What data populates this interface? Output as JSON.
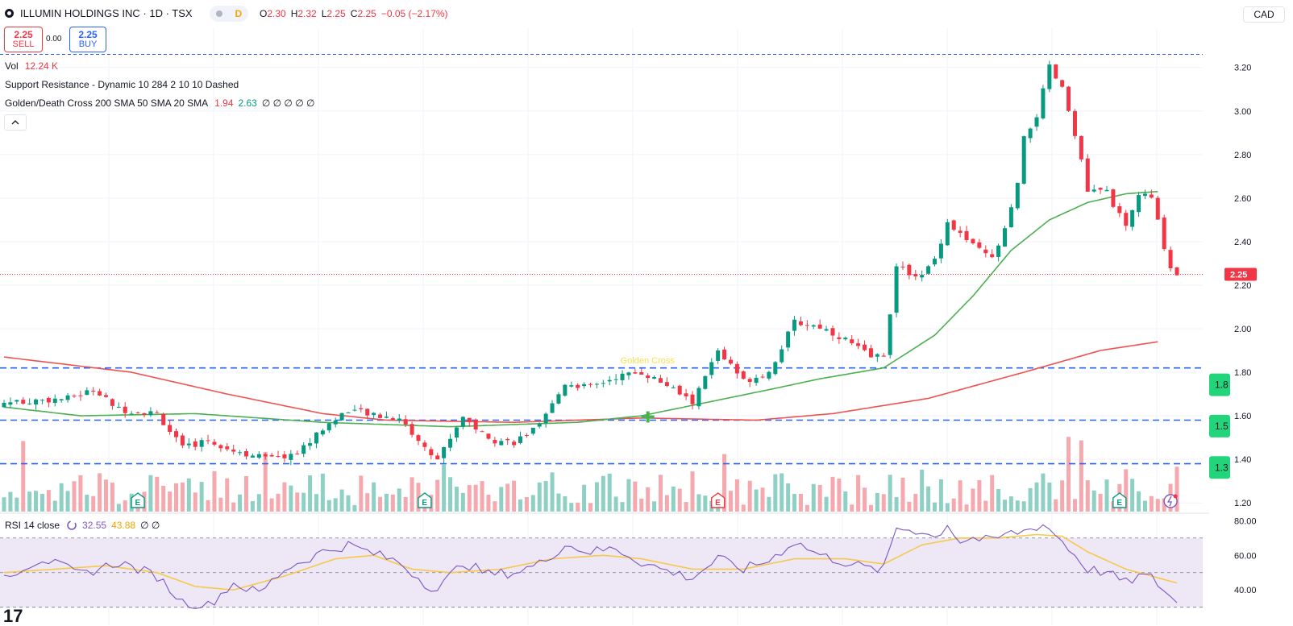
{
  "header": {
    "title": "ILLUMIN HOLDINGS INC · 1D · TSX",
    "toggle_label": "D",
    "ohlc": {
      "o_label": "O",
      "o": "2.30",
      "h_label": "H",
      "h": "2.32",
      "l_label": "L",
      "l": "2.25",
      "c_label": "C",
      "c": "2.25",
      "change": "−0.05 (−2.17%)"
    },
    "currency": "CAD"
  },
  "trade": {
    "sell_price": "2.25",
    "sell_label": "SELL",
    "spread": "0.00",
    "buy_price": "2.25",
    "buy_label": "BUY"
  },
  "legends": {
    "vol_label": "Vol",
    "vol_value": "12.24 K",
    "sr_label": "Support Resistance - Dynamic 10 284 2 10 10 Dashed",
    "gdc_label": "Golden/Death Cross 200 SMA 50 SMA 20 SMA",
    "gdc_v1": "1.94",
    "gdc_v2": "2.63",
    "gdc_rest": "∅ ∅ ∅ ∅ ∅",
    "collapse_icon": "chevron-up-icon"
  },
  "rsi_legend": {
    "label": "RSI 14 close",
    "v1": "32.55",
    "v2": "43.88",
    "rest": "∅ ∅"
  },
  "colors": {
    "up": "#089981",
    "down": "#f23645",
    "sma50": "#4caf50",
    "sma200": "#ef5350",
    "sr": "#2962ff",
    "rsi": "#7e57c2",
    "rsi_ma": "#f7c94a",
    "rsi_band": "#ede7f6",
    "pos_tag": "#22d47a"
  },
  "chart_data": {
    "type": "candlestick",
    "symbol": "ILLUMIN HOLDINGS INC",
    "interval": "1D",
    "y_ticks": [
      "3.20",
      "3.00",
      "2.80",
      "2.60",
      "2.40",
      "2.20",
      "2.00",
      "1.80",
      "1.60",
      "1.40",
      "1.20"
    ],
    "y_range": [
      1.16,
      3.31
    ],
    "last_price": "2.25",
    "support_resistance": [
      3.26,
      1.82,
      1.58,
      1.38
    ],
    "right_tags": [
      "1.8",
      "1.5",
      "1.3"
    ],
    "annotations": {
      "golden_cross": "Golden Cross"
    },
    "event_markers": [
      {
        "index": 21,
        "label": "E",
        "type": "earnings"
      },
      {
        "index": 66,
        "label": "E",
        "type": "earnings"
      },
      {
        "index": 112,
        "label": "E",
        "type": "earnings-negative"
      },
      {
        "index": 175,
        "label": "E",
        "type": "earnings"
      }
    ],
    "sma50_anchors": [
      [
        0,
        1.64
      ],
      [
        12,
        1.6
      ],
      [
        30,
        1.61
      ],
      [
        50,
        1.57
      ],
      [
        70,
        1.55
      ],
      [
        90,
        1.57
      ],
      [
        100,
        1.6
      ],
      [
        110,
        1.66
      ],
      [
        120,
        1.72
      ],
      [
        128,
        1.77
      ],
      [
        138,
        1.82
      ],
      [
        146,
        1.97
      ],
      [
        152,
        2.15
      ],
      [
        158,
        2.36
      ],
      [
        164,
        2.5
      ],
      [
        170,
        2.58
      ],
      [
        176,
        2.62
      ],
      [
        181,
        2.63
      ]
    ],
    "sma200_anchors": [
      [
        0,
        1.87
      ],
      [
        20,
        1.8
      ],
      [
        35,
        1.7
      ],
      [
        50,
        1.61
      ],
      [
        60,
        1.58
      ],
      [
        80,
        1.57
      ],
      [
        100,
        1.59
      ],
      [
        118,
        1.58
      ],
      [
        130,
        1.61
      ],
      [
        145,
        1.68
      ],
      [
        160,
        1.8
      ],
      [
        172,
        1.9
      ],
      [
        181,
        1.94
      ]
    ],
    "close_anchors": [
      [
        0,
        1.66
      ],
      [
        10,
        1.68
      ],
      [
        14,
        1.72
      ],
      [
        18,
        1.63
      ],
      [
        24,
        1.61
      ],
      [
        28,
        1.45
      ],
      [
        32,
        1.49
      ],
      [
        36,
        1.44
      ],
      [
        42,
        1.4
      ],
      [
        46,
        1.43
      ],
      [
        50,
        1.54
      ],
      [
        54,
        1.63
      ],
      [
        58,
        1.6
      ],
      [
        62,
        1.59
      ],
      [
        66,
        1.45
      ],
      [
        68,
        1.4
      ],
      [
        72,
        1.6
      ],
      [
        76,
        1.49
      ],
      [
        80,
        1.48
      ],
      [
        84,
        1.55
      ],
      [
        88,
        1.75
      ],
      [
        92,
        1.73
      ],
      [
        96,
        1.78
      ],
      [
        100,
        1.8
      ],
      [
        104,
        1.74
      ],
      [
        108,
        1.66
      ],
      [
        112,
        1.9
      ],
      [
        116,
        1.76
      ],
      [
        120,
        1.8
      ],
      [
        124,
        2.03
      ],
      [
        128,
        2.01
      ],
      [
        132,
        1.95
      ],
      [
        136,
        1.87
      ],
      [
        138,
        1.88
      ],
      [
        140,
        2.28
      ],
      [
        144,
        2.24
      ],
      [
        146,
        2.32
      ],
      [
        148,
        2.49
      ],
      [
        152,
        2.38
      ],
      [
        155,
        2.32
      ],
      [
        157,
        2.45
      ],
      [
        159,
        2.66
      ],
      [
        160,
        2.87
      ],
      [
        162,
        2.98
      ],
      [
        164,
        3.2
      ],
      [
        166,
        3.1
      ],
      [
        168,
        2.9
      ],
      [
        170,
        2.63
      ],
      [
        173,
        2.63
      ],
      [
        176,
        2.46
      ],
      [
        178,
        2.62
      ],
      [
        180,
        2.6
      ],
      [
        182,
        2.38
      ],
      [
        183,
        2.28
      ],
      [
        184,
        2.25
      ]
    ],
    "volume_count": 185,
    "rsi_ticks": [
      "80.00",
      "60.00",
      "40.00"
    ],
    "rsi_levels": [
      70,
      50,
      30
    ],
    "rsi_range": [
      28,
      82
    ],
    "rsi_anchors": [
      [
        0,
        48
      ],
      [
        6,
        58
      ],
      [
        12,
        49
      ],
      [
        18,
        56
      ],
      [
        24,
        48
      ],
      [
        28,
        33
      ],
      [
        32,
        31
      ],
      [
        36,
        44
      ],
      [
        40,
        38
      ],
      [
        44,
        52
      ],
      [
        50,
        62
      ],
      [
        54,
        66
      ],
      [
        58,
        61
      ],
      [
        62,
        56
      ],
      [
        66,
        44
      ],
      [
        68,
        40
      ],
      [
        72,
        56
      ],
      [
        76,
        49
      ],
      [
        80,
        50
      ],
      [
        84,
        55
      ],
      [
        88,
        66
      ],
      [
        92,
        62
      ],
      [
        96,
        64
      ],
      [
        100,
        56
      ],
      [
        104,
        51
      ],
      [
        108,
        47
      ],
      [
        112,
        58
      ],
      [
        116,
        52
      ],
      [
        120,
        57
      ],
      [
        124,
        68
      ],
      [
        128,
        60
      ],
      [
        132,
        56
      ],
      [
        136,
        52
      ],
      [
        138,
        52
      ],
      [
        140,
        76
      ],
      [
        144,
        74
      ],
      [
        146,
        70
      ],
      [
        148,
        78
      ],
      [
        150,
        68
      ],
      [
        152,
        70
      ],
      [
        155,
        68
      ],
      [
        157,
        72
      ],
      [
        160,
        74
      ],
      [
        163,
        78
      ],
      [
        165,
        72
      ],
      [
        168,
        60
      ],
      [
        170,
        52
      ],
      [
        173,
        50
      ],
      [
        176,
        44
      ],
      [
        178,
        48
      ],
      [
        180,
        47
      ],
      [
        182,
        40
      ],
      [
        184,
        32
      ]
    ],
    "rsi_ma_anchors": [
      [
        0,
        50
      ],
      [
        8,
        52
      ],
      [
        16,
        54
      ],
      [
        24,
        50
      ],
      [
        30,
        42
      ],
      [
        36,
        40
      ],
      [
        44,
        48
      ],
      [
        52,
        58
      ],
      [
        58,
        60
      ],
      [
        64,
        52
      ],
      [
        70,
        50
      ],
      [
        78,
        52
      ],
      [
        86,
        58
      ],
      [
        94,
        60
      ],
      [
        100,
        58
      ],
      [
        108,
        52
      ],
      [
        116,
        52
      ],
      [
        124,
        58
      ],
      [
        132,
        58
      ],
      [
        138,
        55
      ],
      [
        144,
        66
      ],
      [
        150,
        70
      ],
      [
        156,
        70
      ],
      [
        162,
        72
      ],
      [
        166,
        71
      ],
      [
        170,
        62
      ],
      [
        176,
        52
      ],
      [
        180,
        48
      ],
      [
        184,
        44
      ]
    ]
  }
}
